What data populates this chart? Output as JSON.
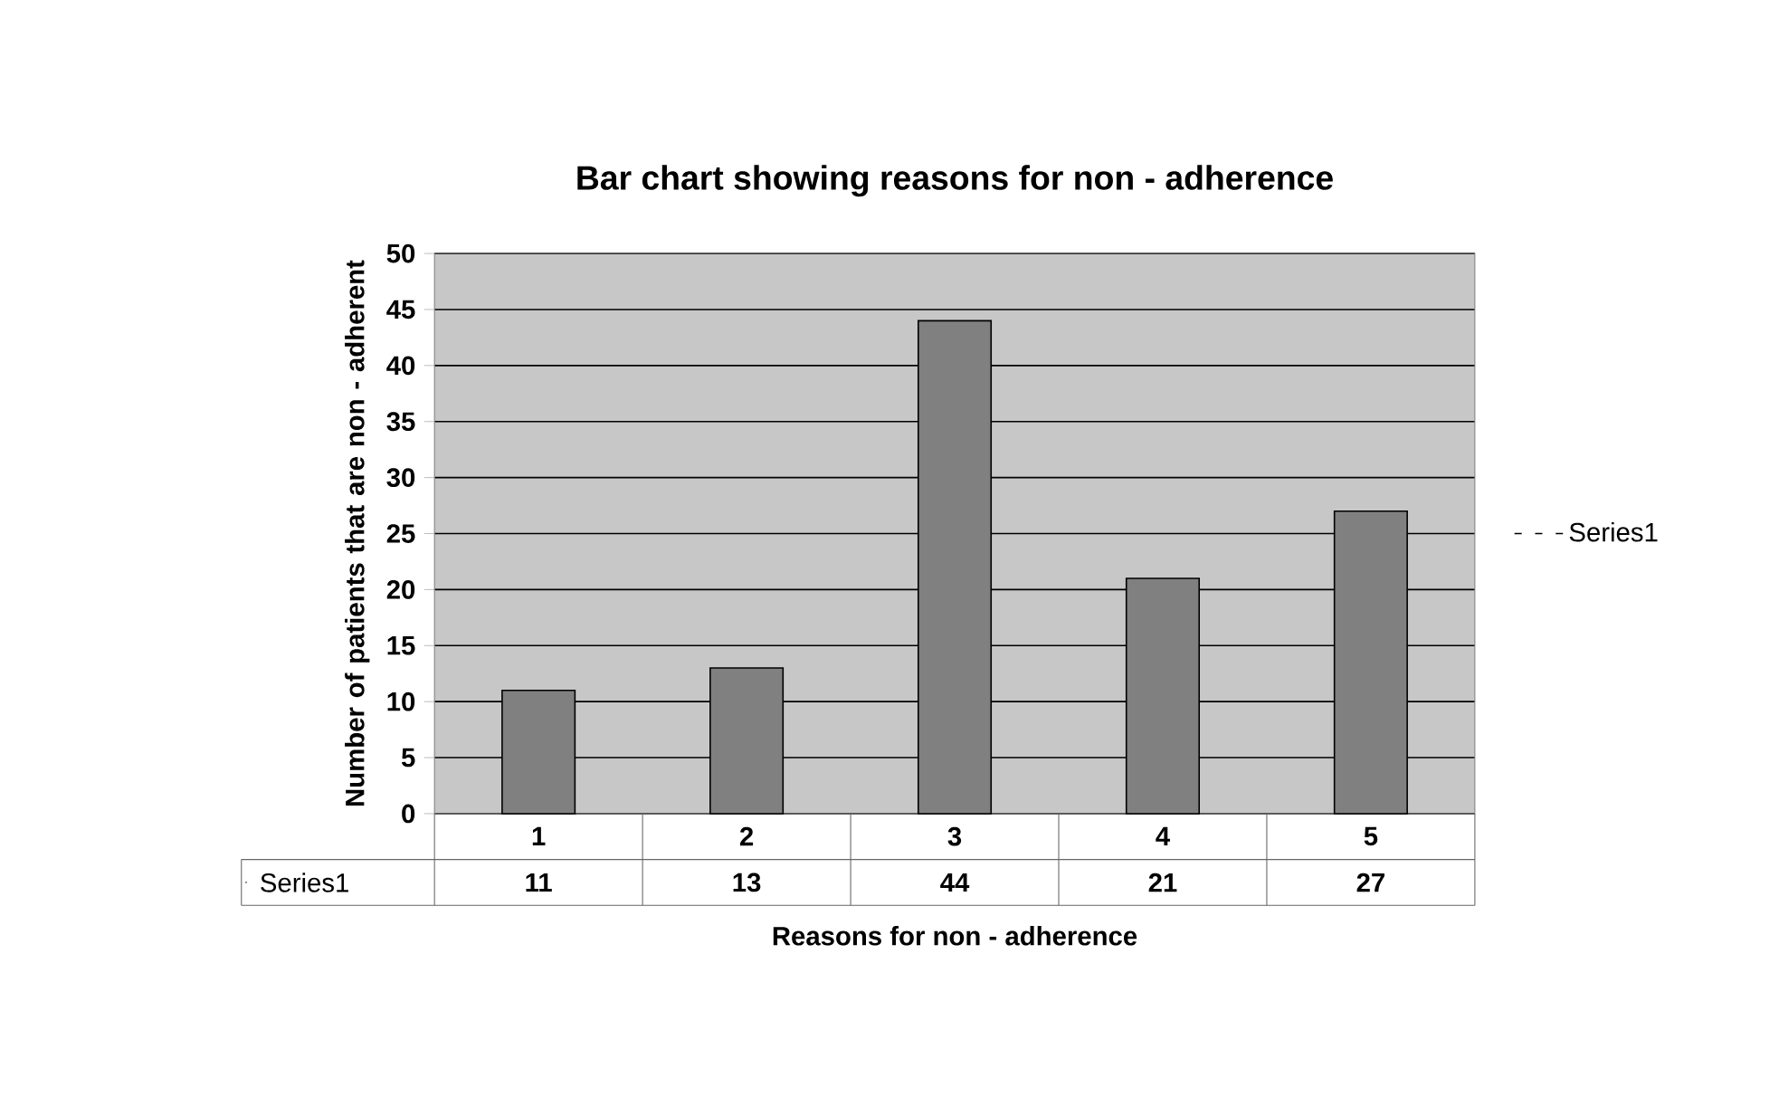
{
  "chart_data": {
    "type": "bar",
    "title": "Bar chart showing reasons for non - adherence",
    "xlabel": "Reasons for non - adherence",
    "ylabel": "Number of patients that are non - adherent",
    "categories": [
      "1",
      "2",
      "3",
      "4",
      "5"
    ],
    "series": [
      {
        "name": "Series1",
        "color": "#808080",
        "values": [
          11,
          13,
          44,
          21,
          27
        ]
      }
    ],
    "ylim": [
      0,
      50
    ],
    "yticks": [
      0,
      5,
      10,
      15,
      20,
      25,
      30,
      35,
      40,
      45,
      50
    ],
    "grid": "y",
    "legend": "right",
    "data_labels": true
  }
}
